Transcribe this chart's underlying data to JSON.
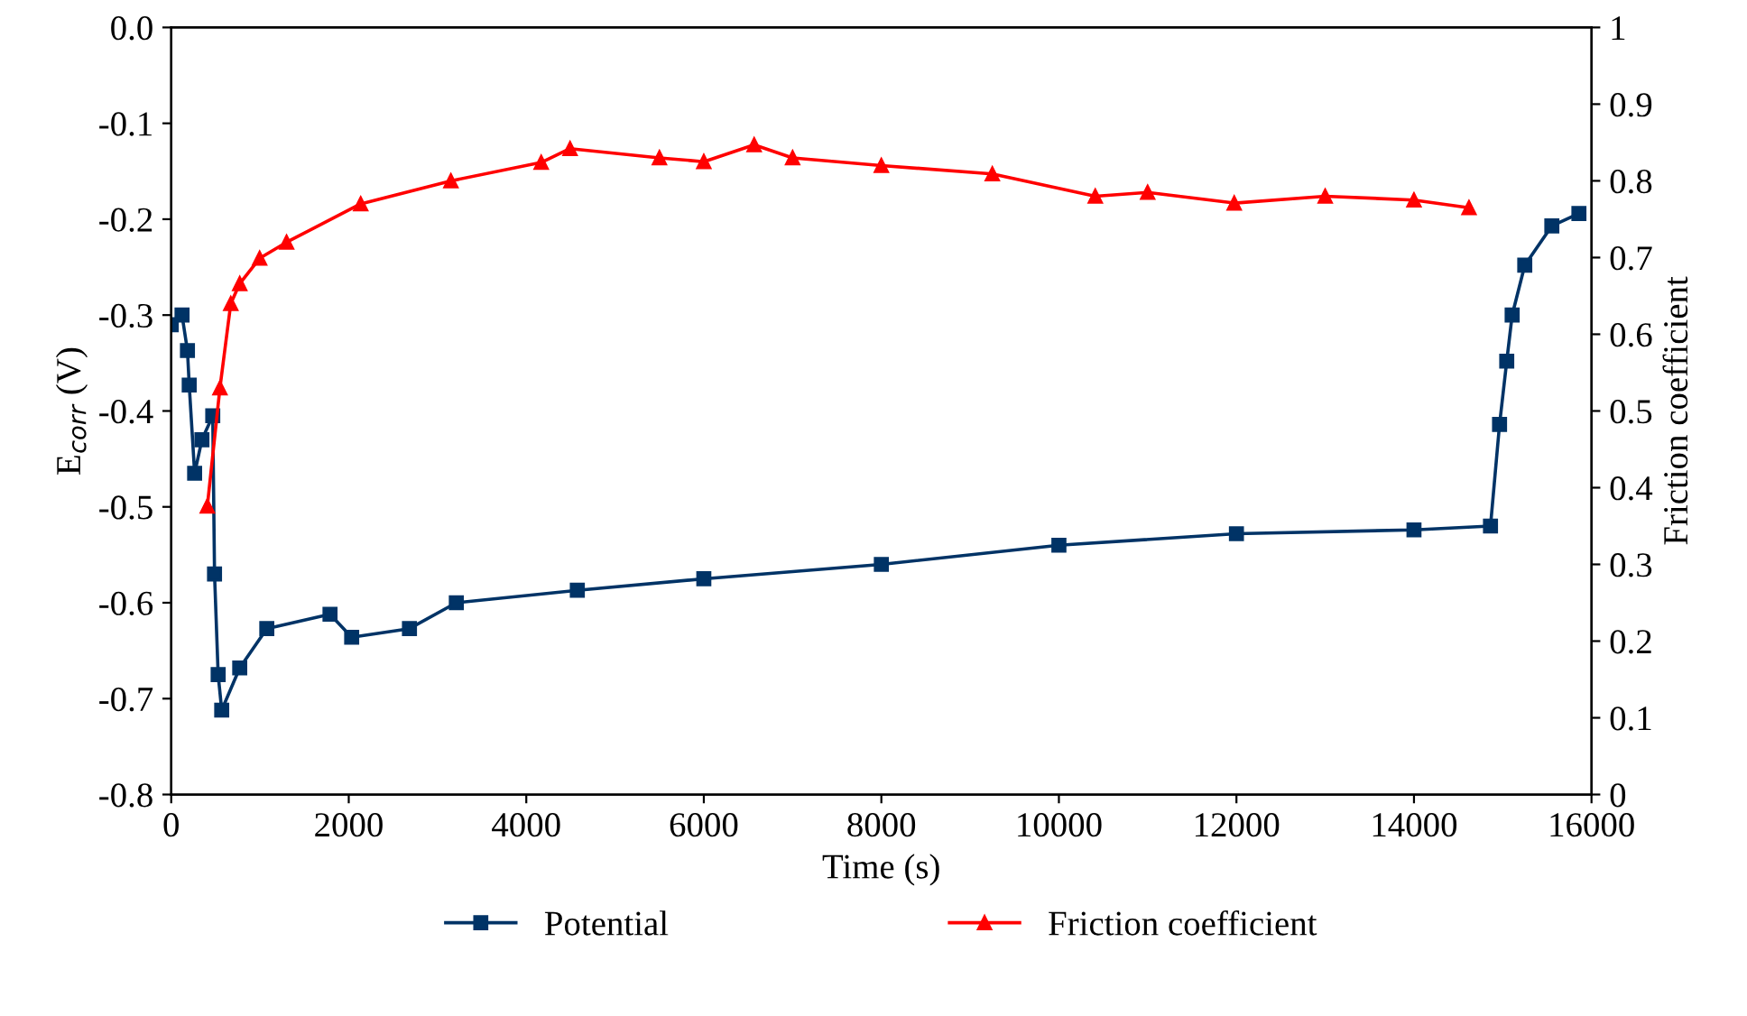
{
  "chart_data": {
    "type": "line",
    "xlabel": "Time (s)",
    "ylabel": "E$_{corr}$ (V)",
    "y2label": "Friction coefficient",
    "xlim": [
      0,
      16000
    ],
    "xticks": [
      0,
      2000,
      4000,
      6000,
      8000,
      10000,
      12000,
      14000,
      16000
    ],
    "ylim": [
      -0.8,
      0.0
    ],
    "yticks": [
      {
        "value": -0.8,
        "label": "-0.8"
      },
      {
        "value": -0.7,
        "label": "-0.7"
      },
      {
        "value": -0.6,
        "label": "-0.6"
      },
      {
        "value": -0.5,
        "label": "-0.5"
      },
      {
        "value": -0.4,
        "label": "-0.4"
      },
      {
        "value": -0.3,
        "label": "-0.3"
      },
      {
        "value": -0.2,
        "label": "-0.2"
      },
      {
        "value": -0.1,
        "label": "-0.1"
      },
      {
        "value": 0.0,
        "label": "0.0"
      }
    ],
    "y2lim": [
      0,
      1
    ],
    "y2ticks": [
      0,
      0.1,
      0.2,
      0.3,
      0.4,
      0.5,
      0.6,
      0.7,
      0.8,
      0.9,
      1
    ],
    "legend": "bottom",
    "grid": false,
    "line_style": "solid",
    "series": [
      {
        "name": "Potential",
        "color": "#003366",
        "marker": "square",
        "x": [
          0,
          122,
          183,
          203,
          264,
          346,
          468,
          488,
          529,
          569,
          772,
          1077,
          1789,
          2033,
          2684,
          3212,
          4575,
          6000,
          8000,
          10000,
          12000,
          14000,
          14862,
          14964,
          15045,
          15106,
          15248,
          15553,
          15858
        ],
        "values": [
          -0.31,
          -0.3,
          -0.337,
          -0.373,
          -0.465,
          -0.43,
          -0.405,
          -0.57,
          -0.675,
          -0.712,
          -0.668,
          -0.627,
          -0.612,
          -0.636,
          -0.627,
          -0.6,
          -0.587,
          -0.575,
          -0.56,
          -0.54,
          -0.528,
          -0.524,
          -0.52,
          -0.414,
          -0.348,
          -0.3,
          -0.248,
          -0.207,
          -0.194
        ]
      },
      {
        "name": "Friction coefficient",
        "color": "#ff0000",
        "marker": "triangle",
        "axis": "y2",
        "x": [
          407,
          549,
          671,
          772,
          996,
          1300,
          2135,
          3151,
          4168,
          4493,
          5500,
          6000,
          6567,
          7000,
          8000,
          9250,
          10410,
          11000,
          11975,
          13000,
          14000,
          14620
        ],
        "values": [
          0.376,
          0.53,
          0.64,
          0.666,
          0.699,
          0.72,
          0.77,
          0.8,
          0.824,
          0.842,
          0.83,
          0.825,
          0.847,
          0.83,
          0.82,
          0.809,
          0.78,
          0.785,
          0.771,
          0.78,
          0.775,
          0.765
        ]
      }
    ]
  }
}
